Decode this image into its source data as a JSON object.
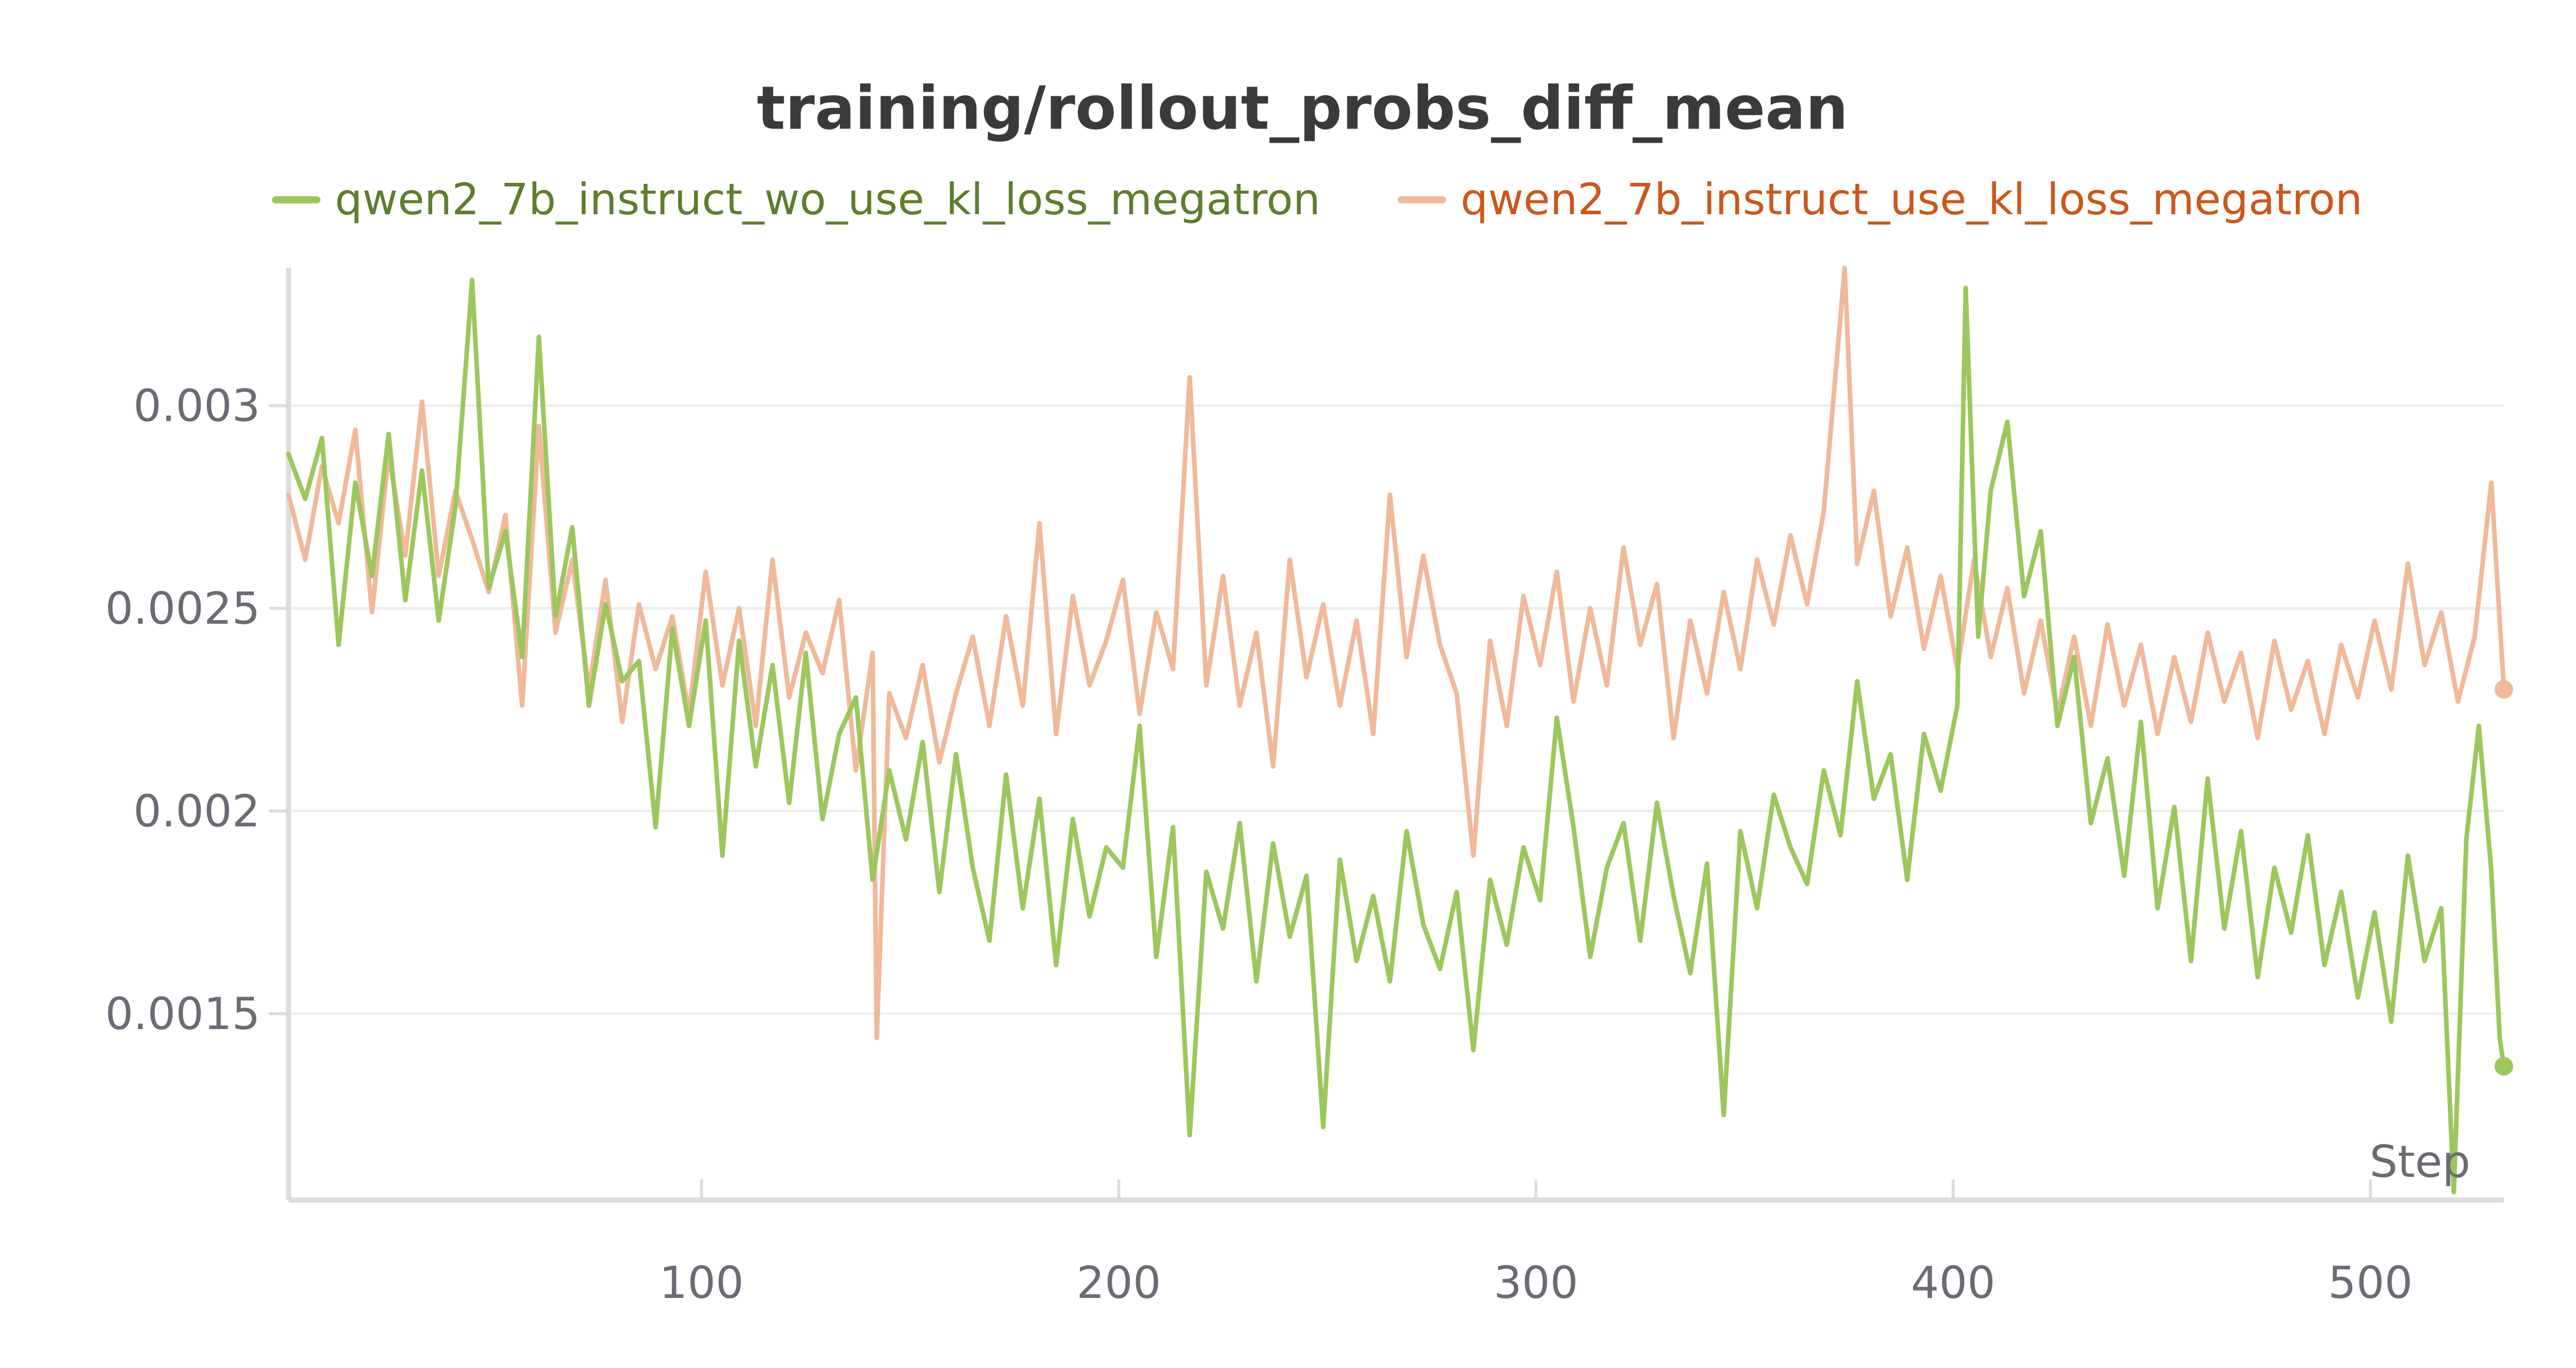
{
  "chart_data": {
    "type": "line",
    "title": "training/rollout_probs_diff_mean",
    "xlabel": "Step",
    "ylabel": "",
    "xlim": [
      1,
      532
    ],
    "ylim": [
      0.00104,
      0.00334
    ],
    "x_ticks": [
      100,
      200,
      300,
      400,
      500
    ],
    "y_ticks": [
      0.0015,
      0.002,
      0.0025,
      0.003
    ],
    "x_tick_labels": [
      "100",
      "200",
      "300",
      "400",
      "500"
    ],
    "y_tick_labels": [
      "0.0015",
      "0.002",
      "0.0025",
      "0.003"
    ],
    "grid": "horizontal",
    "legend_position": "top",
    "series": [
      {
        "name": "qwen2_7b_instruct_wo_use_kl_loss_megatron",
        "color": "#9cc75e",
        "text_color": "#5e7d2e",
        "points": [
          [
            1,
            0.00288
          ],
          [
            5,
            0.00277
          ],
          [
            9,
            0.00292
          ],
          [
            13,
            0.00241
          ],
          [
            17,
            0.00281
          ],
          [
            21,
            0.00258
          ],
          [
            25,
            0.00293
          ],
          [
            29,
            0.00252
          ],
          [
            33,
            0.00284
          ],
          [
            37,
            0.00247
          ],
          [
            41,
            0.00275
          ],
          [
            45,
            0.00331
          ],
          [
            49,
            0.00255
          ],
          [
            53,
            0.00269
          ],
          [
            57,
            0.00238
          ],
          [
            61,
            0.00317
          ],
          [
            65,
            0.00248
          ],
          [
            69,
            0.0027
          ],
          [
            73,
            0.00226
          ],
          [
            77,
            0.00251
          ],
          [
            81,
            0.00232
          ],
          [
            85,
            0.00237
          ],
          [
            89,
            0.00196
          ],
          [
            93,
            0.00245
          ],
          [
            97,
            0.00221
          ],
          [
            101,
            0.00247
          ],
          [
            105,
            0.00189
          ],
          [
            109,
            0.00242
          ],
          [
            113,
            0.00211
          ],
          [
            117,
            0.00236
          ],
          [
            121,
            0.00202
          ],
          [
            125,
            0.00239
          ],
          [
            129,
            0.00198
          ],
          [
            133,
            0.00219
          ],
          [
            137,
            0.00228
          ],
          [
            141,
            0.00183
          ],
          [
            145,
            0.0021
          ],
          [
            149,
            0.00193
          ],
          [
            153,
            0.00217
          ],
          [
            157,
            0.0018
          ],
          [
            161,
            0.00214
          ],
          [
            165,
            0.00186
          ],
          [
            169,
            0.00168
          ],
          [
            173,
            0.00209
          ],
          [
            177,
            0.00176
          ],
          [
            181,
            0.00203
          ],
          [
            185,
            0.00162
          ],
          [
            189,
            0.00198
          ],
          [
            193,
            0.00174
          ],
          [
            197,
            0.00191
          ],
          [
            201,
            0.00186
          ],
          [
            205,
            0.00221
          ],
          [
            209,
            0.00164
          ],
          [
            213,
            0.00196
          ],
          [
            217,
            0.0012
          ],
          [
            221,
            0.00185
          ],
          [
            225,
            0.00171
          ],
          [
            229,
            0.00197
          ],
          [
            233,
            0.00158
          ],
          [
            237,
            0.00192
          ],
          [
            241,
            0.00169
          ],
          [
            245,
            0.00184
          ],
          [
            249,
            0.00122
          ],
          [
            253,
            0.00188
          ],
          [
            257,
            0.00163
          ],
          [
            261,
            0.00179
          ],
          [
            265,
            0.00158
          ],
          [
            269,
            0.00195
          ],
          [
            273,
            0.00172
          ],
          [
            277,
            0.00161
          ],
          [
            281,
            0.0018
          ],
          [
            285,
            0.00141
          ],
          [
            289,
            0.00183
          ],
          [
            293,
            0.00167
          ],
          [
            297,
            0.00191
          ],
          [
            301,
            0.00178
          ],
          [
            305,
            0.00223
          ],
          [
            309,
            0.00196
          ],
          [
            313,
            0.00164
          ],
          [
            317,
            0.00186
          ],
          [
            321,
            0.00197
          ],
          [
            325,
            0.00168
          ],
          [
            329,
            0.00202
          ],
          [
            333,
            0.00179
          ],
          [
            337,
            0.0016
          ],
          [
            341,
            0.00187
          ],
          [
            345,
            0.00125
          ],
          [
            349,
            0.00195
          ],
          [
            353,
            0.00176
          ],
          [
            357,
            0.00204
          ],
          [
            361,
            0.00191
          ],
          [
            365,
            0.00182
          ],
          [
            369,
            0.0021
          ],
          [
            373,
            0.00194
          ],
          [
            377,
            0.00232
          ],
          [
            381,
            0.00203
          ],
          [
            385,
            0.00214
          ],
          [
            389,
            0.00183
          ],
          [
            393,
            0.00219
          ],
          [
            397,
            0.00205
          ],
          [
            401,
            0.00226
          ],
          [
            403,
            0.00329
          ],
          [
            406,
            0.00243
          ],
          [
            409,
            0.00279
          ],
          [
            413,
            0.00296
          ],
          [
            417,
            0.00253
          ],
          [
            421,
            0.00269
          ],
          [
            425,
            0.00221
          ],
          [
            429,
            0.00238
          ],
          [
            433,
            0.00197
          ],
          [
            437,
            0.00213
          ],
          [
            441,
            0.00184
          ],
          [
            445,
            0.00222
          ],
          [
            449,
            0.00176
          ],
          [
            453,
            0.00201
          ],
          [
            457,
            0.00163
          ],
          [
            461,
            0.00208
          ],
          [
            465,
            0.00171
          ],
          [
            469,
            0.00195
          ],
          [
            473,
            0.00159
          ],
          [
            477,
            0.00186
          ],
          [
            481,
            0.0017
          ],
          [
            485,
            0.00194
          ],
          [
            489,
            0.00162
          ],
          [
            493,
            0.0018
          ],
          [
            497,
            0.00154
          ],
          [
            501,
            0.00175
          ],
          [
            505,
            0.00148
          ],
          [
            509,
            0.00189
          ],
          [
            513,
            0.00163
          ],
          [
            517,
            0.00176
          ],
          [
            520,
            0.00106
          ],
          [
            523,
            0.00193
          ],
          [
            526,
            0.00221
          ],
          [
            529,
            0.00185
          ],
          [
            531,
            0.00144
          ],
          [
            532,
            0.00137
          ]
        ]
      },
      {
        "name": "qwen2_7b_instruct_use_kl_loss_megatron",
        "color": "#f0b99a",
        "text_color": "#c9581d",
        "points": [
          [
            1,
            0.00278
          ],
          [
            5,
            0.00262
          ],
          [
            9,
            0.00285
          ],
          [
            13,
            0.00271
          ],
          [
            17,
            0.00294
          ],
          [
            21,
            0.00249
          ],
          [
            25,
            0.00288
          ],
          [
            29,
            0.00263
          ],
          [
            33,
            0.00301
          ],
          [
            37,
            0.00258
          ],
          [
            41,
            0.00279
          ],
          [
            45,
            0.00267
          ],
          [
            49,
            0.00254
          ],
          [
            53,
            0.00273
          ],
          [
            57,
            0.00226
          ],
          [
            61,
            0.00295
          ],
          [
            65,
            0.00244
          ],
          [
            69,
            0.00262
          ],
          [
            73,
            0.0023
          ],
          [
            77,
            0.00257
          ],
          [
            81,
            0.00222
          ],
          [
            85,
            0.00251
          ],
          [
            89,
            0.00235
          ],
          [
            93,
            0.00248
          ],
          [
            97,
            0.00224
          ],
          [
            101,
            0.00259
          ],
          [
            105,
            0.00231
          ],
          [
            109,
            0.0025
          ],
          [
            113,
            0.00221
          ],
          [
            117,
            0.00262
          ],
          [
            121,
            0.00228
          ],
          [
            125,
            0.00244
          ],
          [
            129,
            0.00234
          ],
          [
            133,
            0.00252
          ],
          [
            137,
            0.0021
          ],
          [
            141,
            0.00239
          ],
          [
            142,
            0.00144
          ],
          [
            145,
            0.00229
          ],
          [
            149,
            0.00218
          ],
          [
            153,
            0.00236
          ],
          [
            157,
            0.00212
          ],
          [
            161,
            0.00229
          ],
          [
            165,
            0.00243
          ],
          [
            169,
            0.00221
          ],
          [
            173,
            0.00248
          ],
          [
            177,
            0.00226
          ],
          [
            181,
            0.00271
          ],
          [
            185,
            0.00219
          ],
          [
            189,
            0.00253
          ],
          [
            193,
            0.00231
          ],
          [
            197,
            0.00242
          ],
          [
            201,
            0.00257
          ],
          [
            205,
            0.00224
          ],
          [
            209,
            0.00249
          ],
          [
            213,
            0.00235
          ],
          [
            217,
            0.00307
          ],
          [
            221,
            0.00231
          ],
          [
            225,
            0.00258
          ],
          [
            229,
            0.00226
          ],
          [
            233,
            0.00244
          ],
          [
            237,
            0.00211
          ],
          [
            241,
            0.00262
          ],
          [
            245,
            0.00233
          ],
          [
            249,
            0.00251
          ],
          [
            253,
            0.00226
          ],
          [
            257,
            0.00247
          ],
          [
            261,
            0.00219
          ],
          [
            265,
            0.00278
          ],
          [
            269,
            0.00238
          ],
          [
            273,
            0.00263
          ],
          [
            277,
            0.00241
          ],
          [
            281,
            0.00229
          ],
          [
            285,
            0.00189
          ],
          [
            289,
            0.00242
          ],
          [
            293,
            0.00221
          ],
          [
            297,
            0.00253
          ],
          [
            301,
            0.00236
          ],
          [
            305,
            0.00259
          ],
          [
            309,
            0.00227
          ],
          [
            313,
            0.0025
          ],
          [
            317,
            0.00231
          ],
          [
            321,
            0.00265
          ],
          [
            325,
            0.00241
          ],
          [
            329,
            0.00256
          ],
          [
            333,
            0.00218
          ],
          [
            337,
            0.00247
          ],
          [
            341,
            0.00229
          ],
          [
            345,
            0.00254
          ],
          [
            349,
            0.00235
          ],
          [
            353,
            0.00262
          ],
          [
            357,
            0.00246
          ],
          [
            361,
            0.00268
          ],
          [
            365,
            0.00251
          ],
          [
            369,
            0.00274
          ],
          [
            374,
            0.00334
          ],
          [
            377,
            0.00261
          ],
          [
            381,
            0.00279
          ],
          [
            385,
            0.00248
          ],
          [
            389,
            0.00265
          ],
          [
            393,
            0.0024
          ],
          [
            397,
            0.00258
          ],
          [
            401,
            0.00235
          ],
          [
            405,
            0.00262
          ],
          [
            409,
            0.00238
          ],
          [
            413,
            0.00255
          ],
          [
            417,
            0.00229
          ],
          [
            421,
            0.00247
          ],
          [
            425,
            0.00224
          ],
          [
            429,
            0.00243
          ],
          [
            433,
            0.00221
          ],
          [
            437,
            0.00246
          ],
          [
            441,
            0.00226
          ],
          [
            445,
            0.00241
          ],
          [
            449,
            0.00219
          ],
          [
            453,
            0.00238
          ],
          [
            457,
            0.00222
          ],
          [
            461,
            0.00244
          ],
          [
            465,
            0.00227
          ],
          [
            469,
            0.00239
          ],
          [
            473,
            0.00218
          ],
          [
            477,
            0.00242
          ],
          [
            481,
            0.00225
          ],
          [
            485,
            0.00237
          ],
          [
            489,
            0.00219
          ],
          [
            493,
            0.00241
          ],
          [
            497,
            0.00228
          ],
          [
            501,
            0.00247
          ],
          [
            505,
            0.0023
          ],
          [
            509,
            0.00261
          ],
          [
            513,
            0.00236
          ],
          [
            517,
            0.00249
          ],
          [
            521,
            0.00227
          ],
          [
            525,
            0.00243
          ],
          [
            529,
            0.00281
          ],
          [
            532,
            0.0023
          ]
        ]
      }
    ]
  }
}
